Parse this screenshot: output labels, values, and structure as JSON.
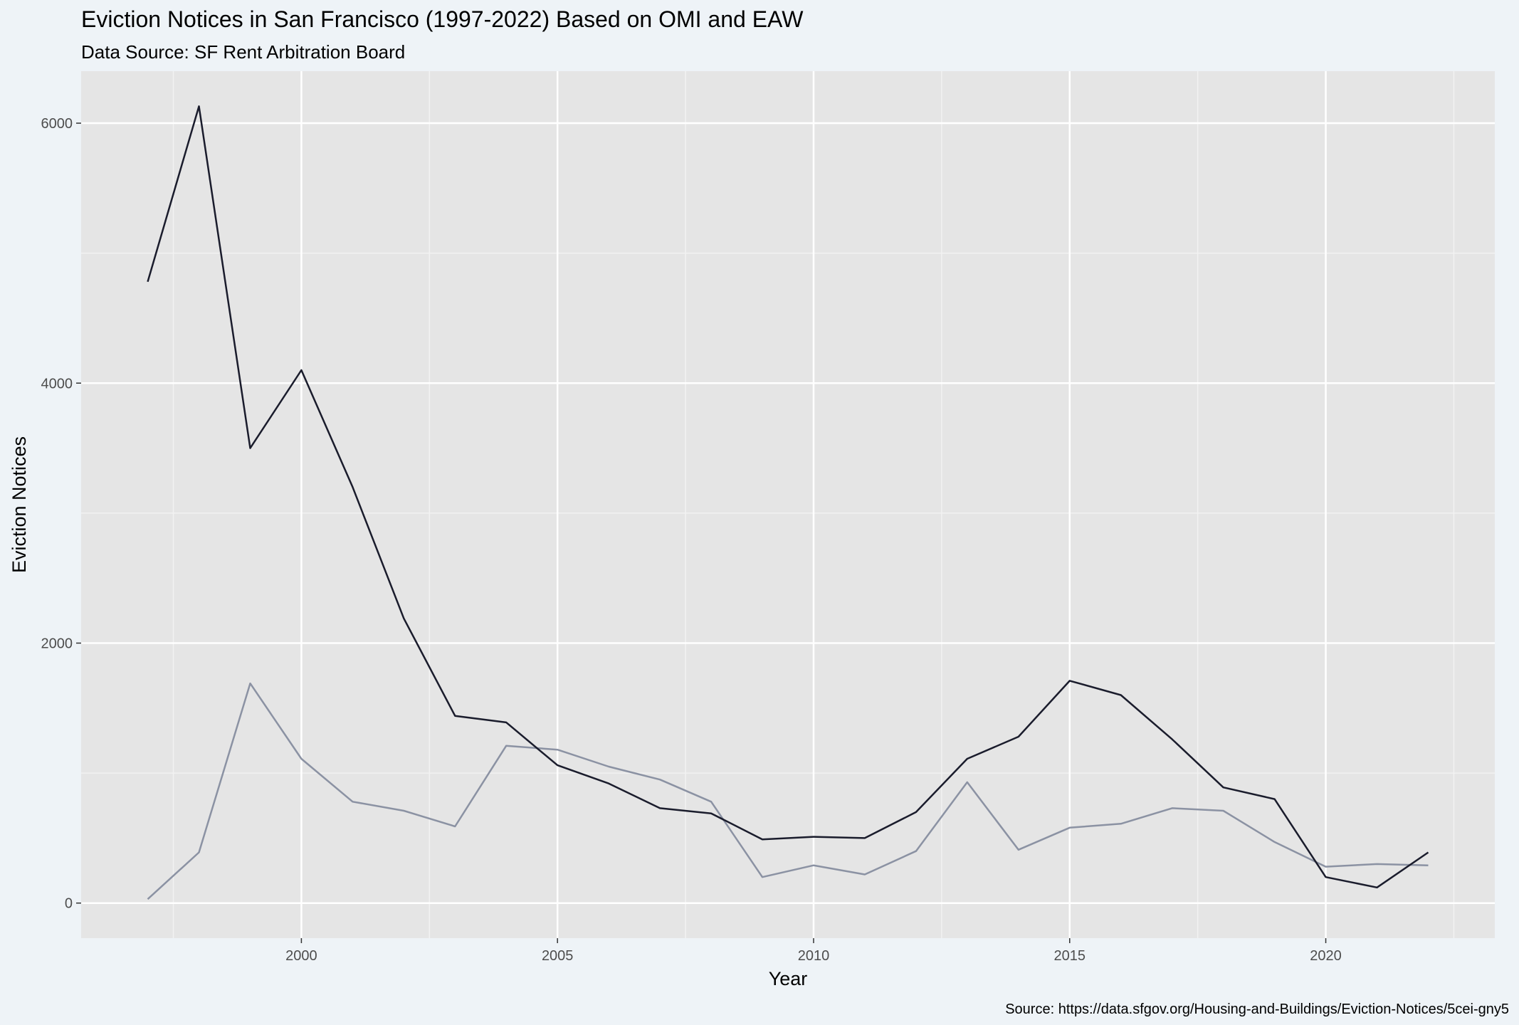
{
  "chart_data": {
    "type": "line",
    "title": "Eviction Notices in San Francisco (1997-2022) Based on OMI and EAW",
    "subtitle": "Data Source: SF Rent Arbitration Board",
    "xlabel": "Year",
    "ylabel": "Eviction Notices",
    "caption": "Source: https://data.sfgov.org/Housing-and-Buildings/Eviction-Notices/5cei-gny5",
    "x": [
      1997,
      1998,
      1999,
      2000,
      2001,
      2002,
      2003,
      2004,
      2005,
      2006,
      2007,
      2008,
      2009,
      2010,
      2011,
      2012,
      2013,
      2014,
      2015,
      2016,
      2017,
      2018,
      2019,
      2020,
      2021,
      2022
    ],
    "xlim": [
      1995.7,
      2023.3
    ],
    "ylim": [
      -270,
      6400
    ],
    "x_ticks": [
      2000,
      2005,
      2010,
      2015,
      2020
    ],
    "y_ticks": [
      0,
      2000,
      4000,
      6000
    ],
    "grid": true,
    "legend": "none",
    "series": [
      {
        "name": "OMI",
        "color": "#1a1c2c",
        "values": [
          4780,
          6130,
          3500,
          4100,
          3200,
          2190,
          1440,
          1390,
          1060,
          920,
          730,
          690,
          490,
          510,
          500,
          700,
          1110,
          1280,
          1710,
          1600,
          1260,
          890,
          800,
          200,
          120,
          390
        ]
      },
      {
        "name": "EAW",
        "color": "#8b92a3",
        "values": [
          30,
          390,
          1690,
          1110,
          780,
          710,
          590,
          1210,
          1180,
          1050,
          950,
          780,
          200,
          290,
          220,
          400,
          930,
          410,
          580,
          610,
          730,
          710,
          470,
          280,
          300,
          290
        ]
      }
    ]
  }
}
